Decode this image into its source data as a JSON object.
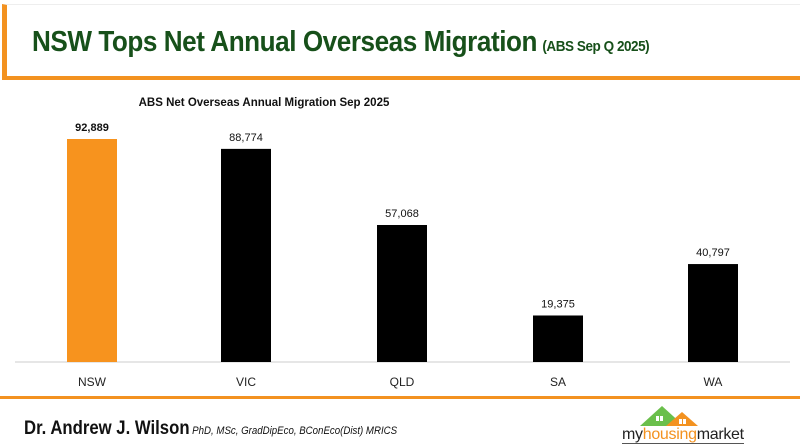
{
  "header": {
    "title": "NSW Tops Net Annual Overseas Migration",
    "subtitle": "(ABS Sep Q 2025)"
  },
  "chart_data": {
    "type": "bar",
    "title": "ABS Net Overseas Annual Migration Sep 2025",
    "categories": [
      "NSW",
      "VIC",
      "QLD",
      "SA",
      "WA"
    ],
    "values": [
      92889,
      88774,
      57068,
      19375,
      40797
    ],
    "labels": [
      "92,889",
      "88,774",
      "57,068",
      "19,375",
      "40,797"
    ],
    "colors": [
      "#f7931e",
      "#000000",
      "#000000",
      "#000000",
      "#000000"
    ],
    "ylim": [
      0,
      100000
    ],
    "grid": false,
    "legend": "none"
  },
  "footer": {
    "author": "Dr. Andrew J. Wilson",
    "credentials": "PhD, MSc, GradDipEco, BConEco(Dist) MRICS",
    "logo": {
      "part1": "my",
      "part2": "housing",
      "part3": "market"
    }
  }
}
